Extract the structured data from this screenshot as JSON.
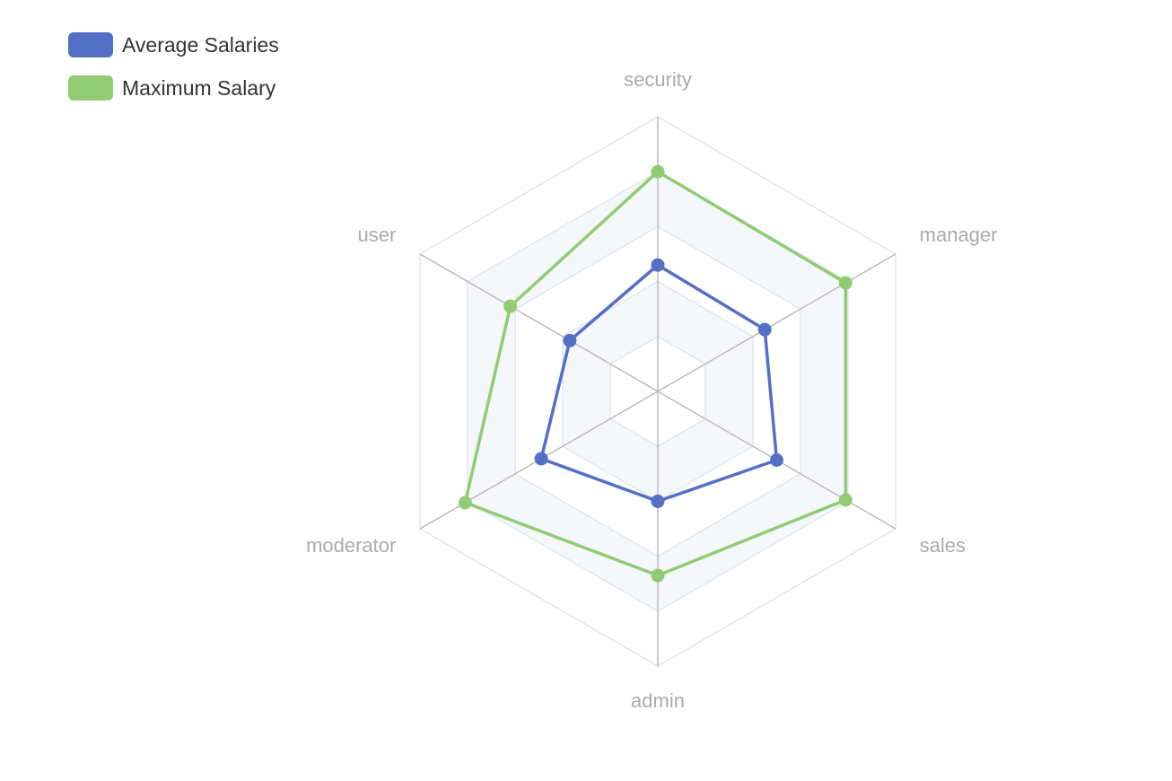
{
  "chart_data": {
    "type": "radar",
    "indicators": [
      {
        "name": "security",
        "max": 100
      },
      {
        "name": "manager",
        "max": 100
      },
      {
        "name": "sales",
        "max": 100
      },
      {
        "name": "admin",
        "max": 100
      },
      {
        "name": "moderator",
        "max": 100
      },
      {
        "name": "user",
        "max": 100
      }
    ],
    "series": [
      {
        "name": "Average Salaries",
        "color": "#5470c6",
        "values": [
          46,
          45,
          50,
          40,
          49,
          37
        ]
      },
      {
        "name": "Maximum Salary",
        "color": "#91cc75",
        "values": [
          80,
          79,
          79,
          67,
          81,
          62
        ]
      }
    ],
    "split_number": 5,
    "legend_position": "top-left",
    "colors": {
      "axis_line": "#bbbbbb",
      "split_line": "#e0e6f1",
      "split_area": [
        "#ffffff",
        "#f6f7fa"
      ],
      "axis_label": "#aaaaaa"
    }
  }
}
